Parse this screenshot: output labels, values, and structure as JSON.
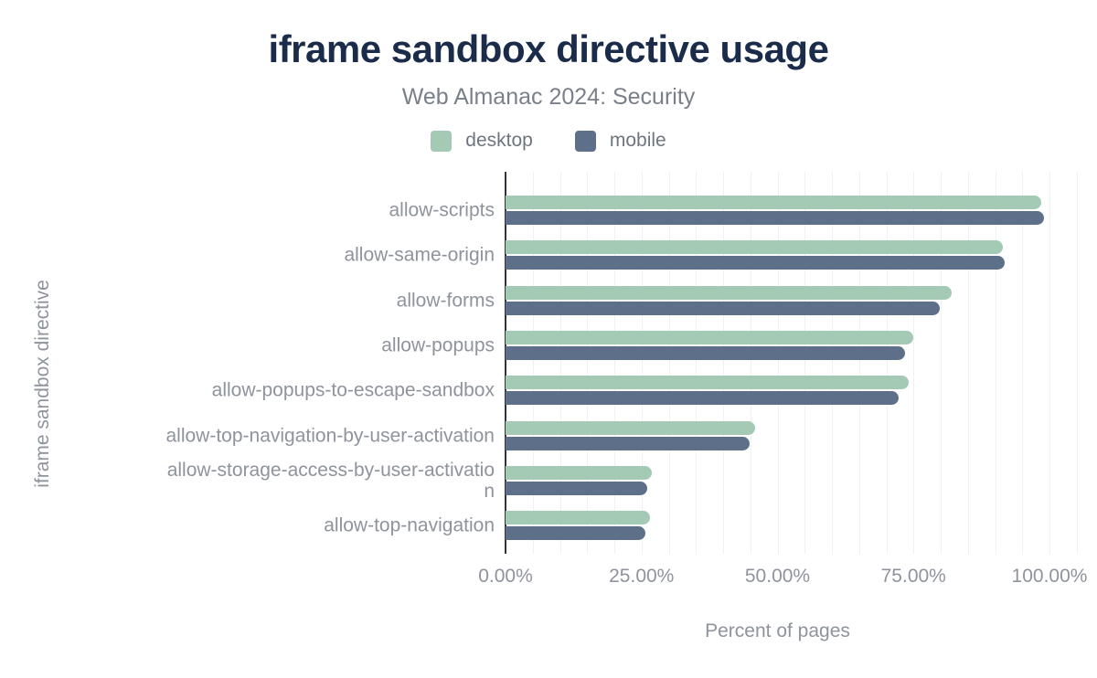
{
  "header": {
    "title": "iframe sandbox directive usage",
    "subtitle": "Web Almanac 2024: Security"
  },
  "legend": {
    "items": [
      {
        "label": "desktop",
        "color": "#a4c9b5"
      },
      {
        "label": "mobile",
        "color": "#5e7089"
      }
    ]
  },
  "colors": {
    "desktop_bar": "#a4c9b5",
    "mobile_bar": "#5e7089",
    "title_text": "#1b2b4a",
    "muted_text": "#8e939c",
    "axis_line": "#2f333b",
    "gridline": "#f1f1f3",
    "background": "#ffffff"
  },
  "chart_data": {
    "type": "bar",
    "orientation": "horizontal",
    "title": "iframe sandbox directive usage",
    "subtitle": "Web Almanac 2024: Security",
    "xlabel": "Percent of pages",
    "ylabel": "iframe sandbox directive",
    "xlim": [
      0,
      105
    ],
    "x_tick_labels": [
      "0.00%",
      "25.00%",
      "50.00%",
      "75.00%",
      "100.00%"
    ],
    "x_tick_values": [
      0,
      25,
      50,
      75,
      100
    ],
    "minor_gridline_step_percent": 5,
    "grid": "minor-vertical",
    "legend_position": "top-center",
    "categories": [
      {
        "label": "allow-scripts",
        "display": "allow-scripts"
      },
      {
        "label": "allow-same-origin",
        "display": "allow-same-origin"
      },
      {
        "label": "allow-forms",
        "display": "allow-forms"
      },
      {
        "label": "allow-popups",
        "display": "allow-popups"
      },
      {
        "label": "allow-popups-to-escape-sandbox",
        "display": "allow-popups-to-escape-sandbox"
      },
      {
        "label": "allow-top-navigation-by-user-activation",
        "display": "allow-top-navigation-by-user-activation"
      },
      {
        "label": "allow-storage-access-by-user-activation",
        "display": "allow-storage-access-by-user-activatio\nn"
      },
      {
        "label": "allow-top-navigation",
        "display": "allow-top-navigation"
      }
    ],
    "series": [
      {
        "name": "desktop",
        "unit": "%",
        "values": [
          98.5,
          91.4,
          82.1,
          75.0,
          74.2,
          45.9,
          26.9,
          26.6
        ]
      },
      {
        "name": "mobile",
        "unit": "%",
        "values": [
          99.0,
          91.8,
          79.8,
          73.4,
          72.2,
          44.8,
          26.1,
          25.7
        ]
      }
    ]
  }
}
